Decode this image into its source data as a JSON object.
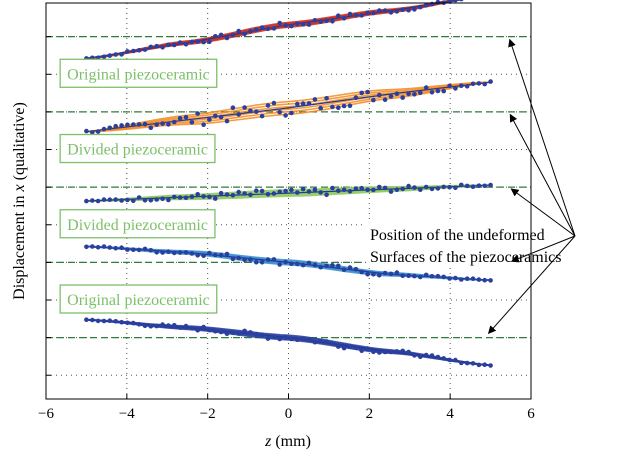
{
  "chart_data": {
    "type": "line",
    "xlabel_var": "z",
    "xlabel_unit": " (mm)",
    "ylabel_pre": "Displacement in ",
    "ylabel_var": "x",
    "ylabel_post": " (qualitative)",
    "xlim": [
      -6,
      6
    ],
    "ylim": [
      0,
      1
    ],
    "xticks": [
      -6,
      -4,
      -2,
      0,
      2,
      4,
      6
    ],
    "xtick_labels": [
      "−6",
      "−4",
      "−2",
      "0",
      "2",
      "4",
      "6"
    ],
    "yticks": [
      0.06,
      0.155,
      0.25,
      0.345,
      0.44,
      0.535,
      0.63,
      0.725,
      0.82,
      0.915
    ],
    "grid": "dotted",
    "reference_lines": [
      0.915,
      0.725,
      0.535,
      0.345,
      0.155
    ],
    "series": [
      {
        "color": "#cc2a1e",
        "x": [
          -5,
          -2.5,
          0,
          2.5,
          5
        ],
        "y": [
          0.86,
          0.9,
          0.945,
          0.98,
          1.02
        ]
      },
      {
        "color": "#f28a20",
        "x": [
          -5,
          -2.5,
          0,
          2.5,
          5
        ],
        "y": [
          0.675,
          0.705,
          0.735,
          0.77,
          0.8
        ]
      },
      {
        "color": "#8cc85c",
        "x": [
          -5,
          -2.5,
          0,
          2.5,
          5
        ],
        "y": [
          0.5,
          0.51,
          0.52,
          0.53,
          0.54
        ]
      },
      {
        "color": "#3a8fd0",
        "x": [
          -5,
          -2.5,
          0,
          2.5,
          5
        ],
        "y": [
          0.385,
          0.37,
          0.345,
          0.315,
          0.3
        ]
      },
      {
        "color": "#2a3f9f",
        "x": [
          -5,
          -2.5,
          0,
          2.5,
          5
        ],
        "y": [
          0.2,
          0.18,
          0.155,
          0.12,
          0.085
        ]
      }
    ],
    "box_labels": [
      {
        "text": "Original piezoceramic",
        "x": -5.65,
        "y": 0.82
      },
      {
        "text": "Divided piezoceramic",
        "x": -5.65,
        "y": 0.63
      },
      {
        "text": "Divided piezoceramic",
        "x": -5.65,
        "y": 0.44
      },
      {
        "text": "Original piezoceramic",
        "x": -5.65,
        "y": 0.25
      }
    ],
    "annotation": {
      "lines": [
        "Position of the undeformed",
        "Surfaces of the piezoceramics"
      ],
      "targets": [
        {
          "x": 5.45,
          "y": 0.915
        },
        {
          "x": 5.45,
          "y": 0.725
        },
        {
          "x": 5.45,
          "y": 0.535
        },
        {
          "x": 5.45,
          "y": 0.345
        },
        {
          "x": 4.9,
          "y": 0.155
        }
      ]
    }
  }
}
